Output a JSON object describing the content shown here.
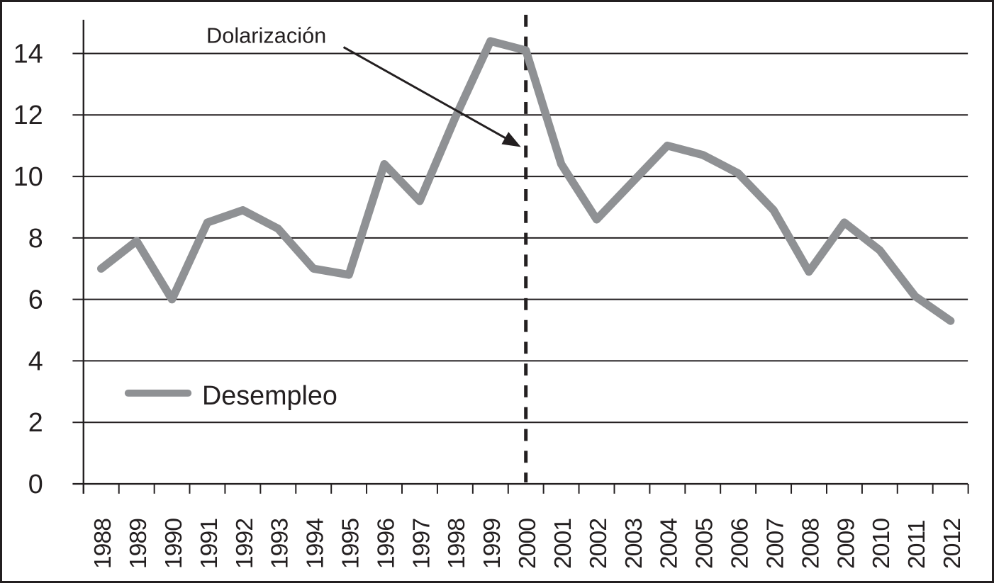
{
  "chart_data": {
    "type": "line",
    "title": "",
    "xlabel": "",
    "ylabel": "",
    "categories": [
      "1988",
      "1989",
      "1990",
      "1991",
      "1992",
      "1993",
      "1994",
      "1995",
      "1996",
      "1997",
      "1998",
      "1999",
      "2000",
      "2001",
      "2002",
      "2003",
      "2004",
      "2005",
      "2006",
      "2007",
      "2008",
      "2009",
      "2010",
      "2011",
      "2012"
    ],
    "series": [
      {
        "name": "Desempleo",
        "values": [
          7.0,
          7.9,
          6.0,
          8.5,
          8.9,
          8.3,
          7.0,
          6.8,
          10.4,
          9.2,
          11.9,
          14.4,
          14.1,
          10.4,
          8.6,
          9.8,
          11.0,
          10.7,
          10.1,
          8.9,
          6.9,
          8.5,
          7.6,
          6.1,
          5.3
        ]
      }
    ],
    "ylim": [
      0,
      14
    ],
    "yticks": [
      0,
      2,
      4,
      6,
      8,
      10,
      12,
      14
    ],
    "grid": "horizontal",
    "legend": {
      "label": "Desempleo",
      "position": "inside-bottom-left"
    },
    "annotation": {
      "label": "Dolarización",
      "target_year": "2000",
      "marker": "dashed-vertical-line",
      "arrow": true
    },
    "series_color": "#8f9194",
    "ink_color": "#231f20"
  }
}
